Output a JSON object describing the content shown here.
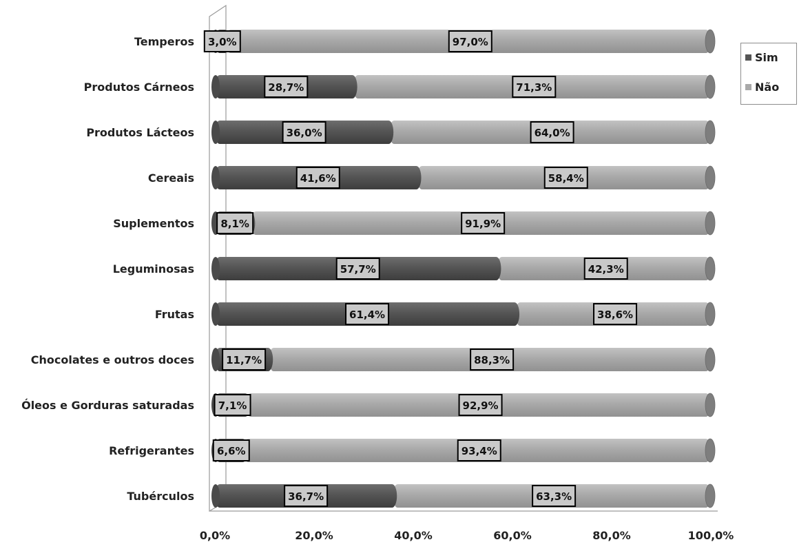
{
  "chart_data": {
    "type": "bar",
    "orientation": "horizontal",
    "stacked": true,
    "categories": [
      "Temperos",
      "Produtos Cárneos",
      "Produtos Lácteos",
      "Cereais",
      "Suplementos",
      "Leguminosas",
      "Frutas",
      "Chocolates e outros doces",
      "Óleos e Gorduras saturadas",
      "Refrigerantes",
      "Tubérculos"
    ],
    "series": [
      {
        "name": "Sim",
        "color": "#555555",
        "values": [
          3.0,
          28.7,
          36.0,
          41.6,
          8.1,
          57.7,
          61.4,
          11.7,
          7.1,
          6.6,
          36.7
        ],
        "labels": [
          "3,0%",
          "28,7%",
          "36,0%",
          "41,6%",
          "8,1%",
          "57,7%",
          "61,4%",
          "11,7%",
          "7,1%",
          "6,6%",
          "36,7%"
        ]
      },
      {
        "name": "Não",
        "color": "#a9a9a9",
        "values": [
          97.0,
          71.3,
          64.0,
          58.4,
          91.9,
          42.3,
          38.6,
          88.3,
          92.9,
          93.4,
          63.3
        ],
        "labels": [
          "97,0%",
          "71,3%",
          "64,0%",
          "58,4%",
          "91,9%",
          "42,3%",
          "38,6%",
          "88,3%",
          "92,9%",
          "93,4%",
          "63,3%"
        ]
      }
    ],
    "xlim": [
      0,
      100
    ],
    "xticks": [
      0,
      20,
      40,
      60,
      80,
      100
    ],
    "xtick_labels": [
      "0,0%",
      "20,0%",
      "40,0%",
      "60,0%",
      "80,0%",
      "100,0%"
    ],
    "legend": {
      "position": "right",
      "entries": [
        "Sim",
        "Não"
      ]
    },
    "grid": false
  }
}
